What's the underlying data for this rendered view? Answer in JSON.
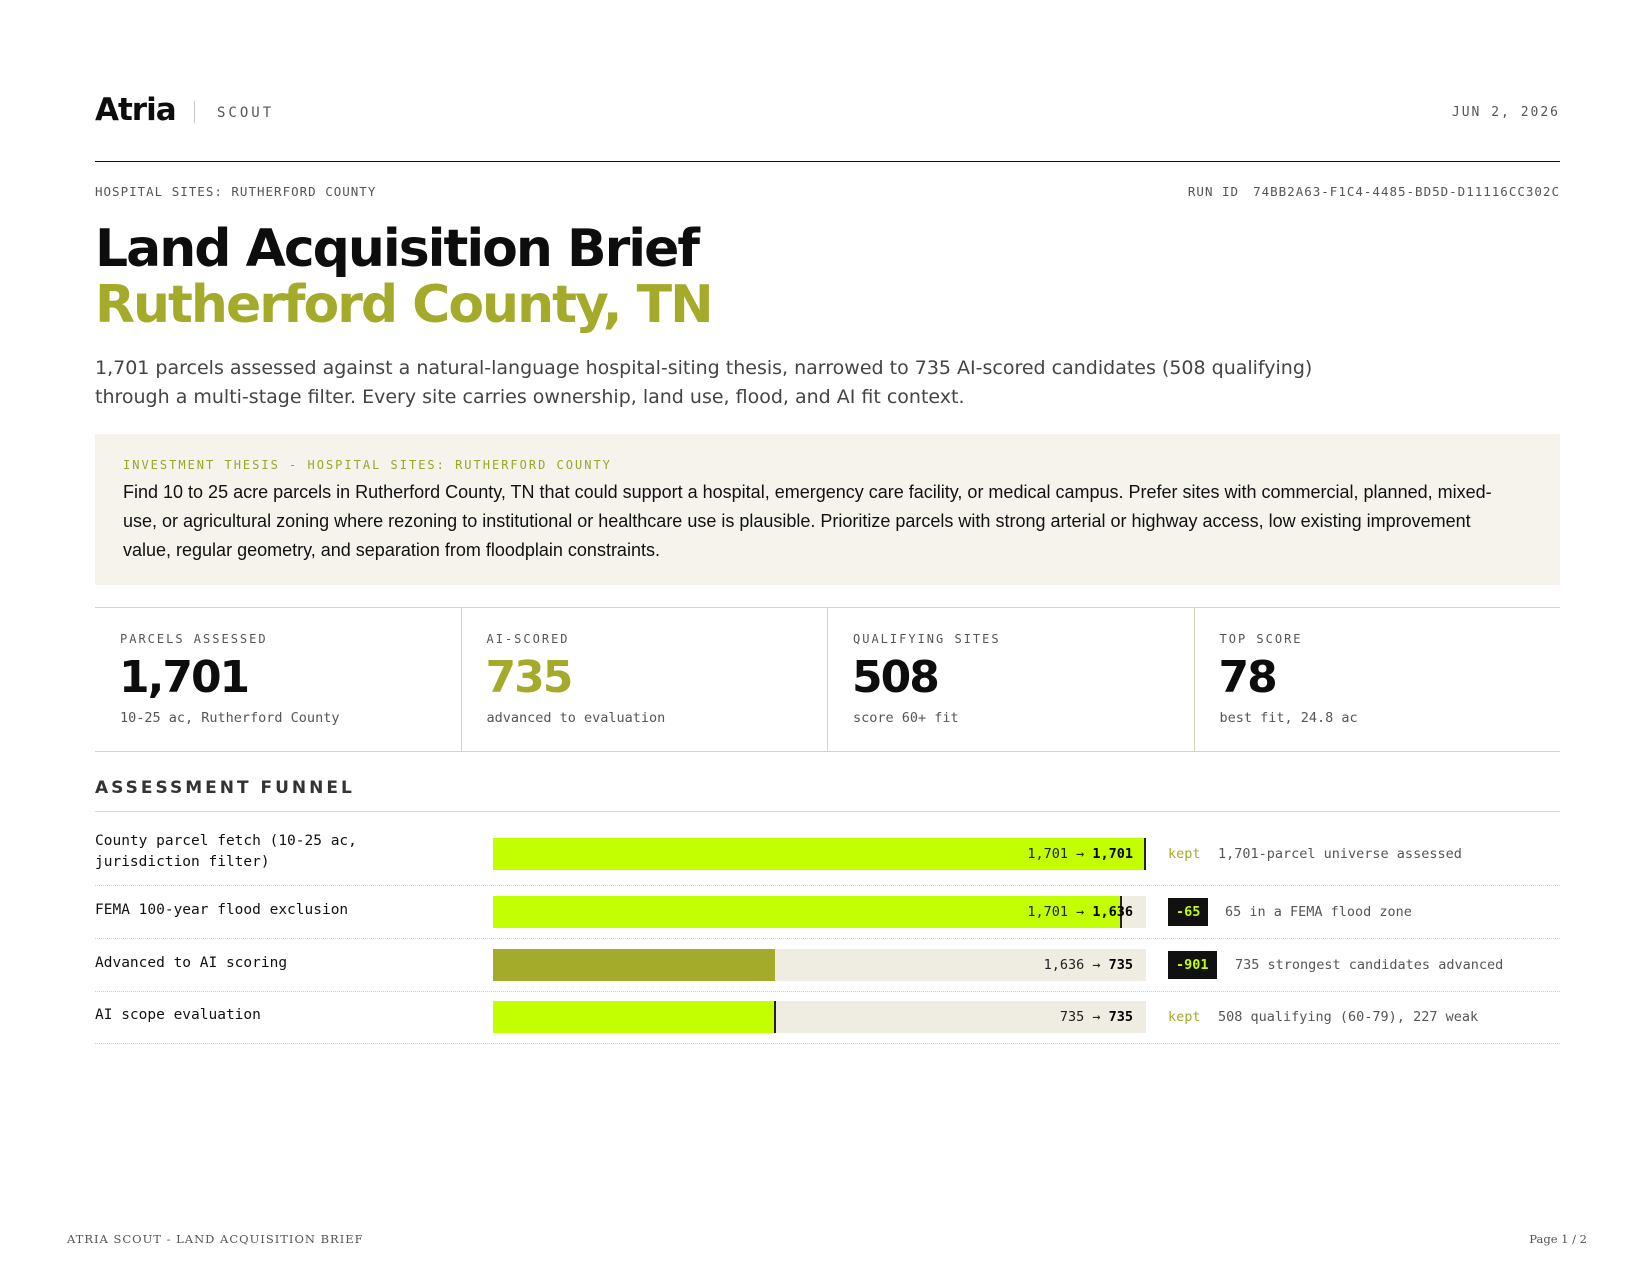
{
  "header": {
    "logo": "Atria",
    "product": "SCOUT",
    "date": "JUN 2, 2026"
  },
  "meta": {
    "context": "HOSPITAL SITES: RUTHERFORD COUNTY",
    "run_id_label": "RUN ID",
    "run_id": "74BB2A63-F1C4-4485-BD5D-D11116CC302C"
  },
  "title": "Land Acquisition Brief",
  "subtitle": "Rutherford County, TN",
  "lede": "1,701 parcels assessed against a natural-language hospital-siting thesis, narrowed to 735 AI-scored candidates (508 qualifying) through a multi-stage filter. Every site carries ownership, land use, flood, and AI fit context.",
  "thesis": {
    "label": "INVESTMENT THESIS - HOSPITAL SITES: RUTHERFORD COUNTY",
    "text": "Find 10 to 25 acre parcels in Rutherford County, TN that could support a hospital, emergency care facility, or medical campus. Prefer sites with commercial, planned, mixed-use, or agricultural zoning where rezoning to institutional or healthcare use is plausible. Prioritize parcels with strong arterial or highway access, low existing improvement value, regular geometry, and separation from floodplain constraints."
  },
  "stats": [
    {
      "label": "PARCELS ASSESSED",
      "value": "1,701",
      "note": "10-25 ac, Rutherford County"
    },
    {
      "label": "AI-SCORED",
      "value": "735",
      "note": "advanced to evaluation"
    },
    {
      "label": "QUALIFYING SITES",
      "value": "508",
      "note": "score 60+ fit"
    },
    {
      "label": "TOP SCORE",
      "value": "78",
      "note": "best fit, 24.8 ac"
    }
  ],
  "funnel": {
    "title": "ASSESSMENT FUNNEL",
    "rows": [
      {
        "label": "County parcel fetch (10-25 ac, jurisdiction filter)",
        "input": "1,701",
        "output": "1,701",
        "fill_fraction": 1.0,
        "marker_fraction": 1.0,
        "fill_color": "#c3ff00",
        "tag": "kept",
        "tag_type": "kept",
        "note": "1,701-parcel universe assessed"
      },
      {
        "label": "FEMA 100-year flood exclusion",
        "input": "1,701",
        "output": "1,636",
        "fill_fraction": 0.962,
        "marker_fraction": 0.962,
        "fill_color": "#c3ff00",
        "tag": "-65",
        "tag_type": "drop",
        "note": "65 in a FEMA flood zone"
      },
      {
        "label": "Advanced to AI scoring",
        "input": "1,636",
        "output": "735",
        "fill_fraction": 0.432,
        "marker_fraction": null,
        "fill_color": "#a4ab2b",
        "tag": "-901",
        "tag_type": "drop",
        "note": "735 strongest candidates advanced"
      },
      {
        "label": "AI scope evaluation",
        "input": "735",
        "output": "735",
        "fill_fraction": 0.432,
        "marker_fraction": 0.432,
        "fill_color": "#c3ff00",
        "tag": "kept",
        "tag_type": "kept",
        "note": "508 qualifying (60-79), 227 weak"
      }
    ]
  },
  "footer": {
    "left": "ATRIA SCOUT - LAND ACQUISITION BRIEF",
    "right": "Page 1 / 2"
  }
}
